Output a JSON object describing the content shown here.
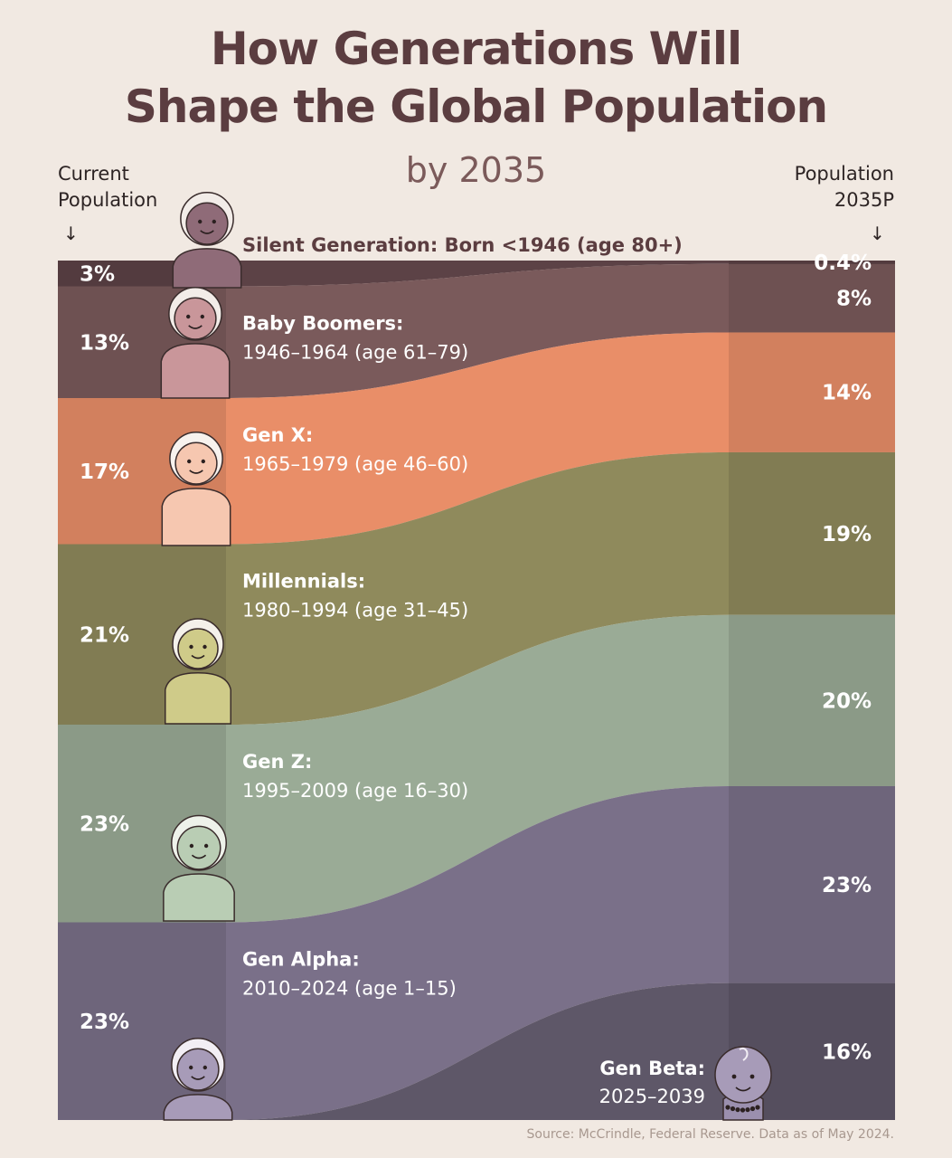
{
  "header": {
    "title_line1": "How Generations Will",
    "title_line2": "Shape the Global Population",
    "subtitle": "by 2035",
    "left_label_line1": "Current",
    "left_label_line2": "Population",
    "right_label_line1": "Population",
    "right_label_line2": "2035P"
  },
  "source": "Source: McCrindle, Federal Reserve. Data as of May 2024.",
  "chart_data": {
    "type": "area",
    "title": "How Generations Will Shape the Global Population by 2035",
    "x": [
      "Current Population",
      "Population 2035P"
    ],
    "series": [
      {
        "name": "Silent Generation:",
        "years": "Born <1946 (age 80+)",
        "current_label": "3%",
        "future_label": "0.4%",
        "current": 3,
        "future": 0.4,
        "color": "#5c4246"
      },
      {
        "name": "Baby Boomers:",
        "years": "1946–1964 (age 61–79)",
        "current_label": "13%",
        "future_label": "8%",
        "current": 13,
        "future": 8,
        "color": "#7a5a5b"
      },
      {
        "name": "Gen X:",
        "years": "1965–1979 (age 46–60)",
        "current_label": "17%",
        "future_label": "14%",
        "current": 17,
        "future": 14,
        "color": "#e98e68"
      },
      {
        "name": "Millennials:",
        "years": "1980–1994 (age 31–45)",
        "current_label": "21%",
        "future_label": "19%",
        "current": 21,
        "future": 19,
        "color": "#8f8a5c"
      },
      {
        "name": "Gen Z:",
        "years": "1995–2009 (age 16–30)",
        "current_label": "23%",
        "future_label": "20%",
        "current": 23,
        "future": 20,
        "color": "#9aab96"
      },
      {
        "name": "Gen Alpha:",
        "years": "2010–2024 (age 1–15)",
        "current_label": "23%",
        "future_label": "23%",
        "current": 23,
        "future": 23,
        "color": "#7a7089"
      },
      {
        "name": "Gen Beta:",
        "years": "2025–2039",
        "current_label": "",
        "future_label": "16%",
        "current": 0,
        "future": 16,
        "color": "#5e5768"
      }
    ]
  }
}
